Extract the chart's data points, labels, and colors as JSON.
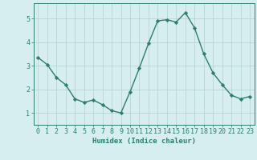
{
  "x": [
    0,
    1,
    2,
    3,
    4,
    5,
    6,
    7,
    8,
    9,
    10,
    11,
    12,
    13,
    14,
    15,
    16,
    17,
    18,
    19,
    20,
    21,
    22,
    23
  ],
  "y": [
    3.35,
    3.05,
    2.5,
    2.2,
    1.6,
    1.45,
    1.55,
    1.35,
    1.1,
    1.0,
    1.9,
    2.9,
    3.95,
    4.9,
    4.95,
    4.85,
    5.25,
    4.6,
    3.5,
    2.7,
    2.2,
    1.75,
    1.6,
    1.7
  ],
  "line_color": "#2e7d6e",
  "marker": "D",
  "marker_size": 2.2,
  "bg_color": "#d6eeee",
  "grid_color": "#b0d0d0",
  "xlabel": "Humidex (Indice chaleur)",
  "xlim": [
    -0.5,
    23.5
  ],
  "ylim": [
    0.5,
    5.65
  ],
  "yticks": [
    1,
    2,
    3,
    4,
    5
  ],
  "xticks": [
    0,
    1,
    2,
    3,
    4,
    5,
    6,
    7,
    8,
    9,
    10,
    11,
    12,
    13,
    14,
    15,
    16,
    17,
    18,
    19,
    20,
    21,
    22,
    23
  ],
  "xlabel_fontsize": 6.5,
  "tick_fontsize": 6,
  "line_width": 1.0
}
